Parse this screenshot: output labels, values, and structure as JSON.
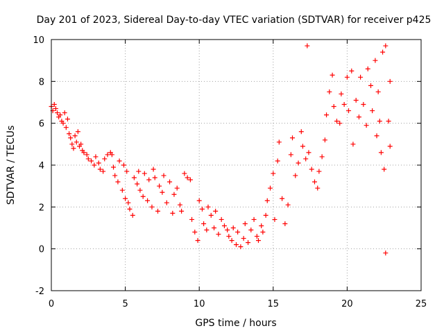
{
  "chart_data": {
    "type": "scatter",
    "title": "Day 201 of 2023, Sidereal Day-to-day VTEC variation (SDTVAR) for receiver p425",
    "xlabel": "GPS time / hours",
    "ylabel": "SDTVAR / TECUs",
    "xlim": [
      0,
      25
    ],
    "ylim": [
      -2,
      10
    ],
    "x_ticks": [
      0,
      5,
      10,
      15,
      20,
      25
    ],
    "x_tick_labels": [
      "0",
      "5",
      "10",
      "15",
      "20",
      "25"
    ],
    "y_ticks": [
      -2,
      0,
      2,
      4,
      6,
      8,
      10
    ],
    "y_tick_labels": [
      "-2",
      "0",
      "2",
      "4",
      "6",
      "8",
      "10"
    ],
    "grid": true,
    "marker": "+",
    "series": [
      {
        "name": "p425",
        "color": "#ff0000",
        "points": [
          {
            "x": 0.0,
            "y": 6.8
          },
          {
            "x": 0.1,
            "y": 6.6
          },
          {
            "x": 0.2,
            "y": 6.9
          },
          {
            "x": 0.3,
            "y": 6.7
          },
          {
            "x": 0.4,
            "y": 6.5
          },
          {
            "x": 0.5,
            "y": 6.3
          },
          {
            "x": 0.6,
            "y": 6.4
          },
          {
            "x": 0.7,
            "y": 6.1
          },
          {
            "x": 0.8,
            "y": 6.0
          },
          {
            "x": 0.9,
            "y": 6.5
          },
          {
            "x": 1.0,
            "y": 5.8
          },
          {
            "x": 1.1,
            "y": 6.2
          },
          {
            "x": 1.2,
            "y": 5.5
          },
          {
            "x": 1.3,
            "y": 5.3
          },
          {
            "x": 1.4,
            "y": 5.0
          },
          {
            "x": 1.5,
            "y": 4.8
          },
          {
            "x": 1.6,
            "y": 5.4
          },
          {
            "x": 1.7,
            "y": 5.1
          },
          {
            "x": 1.8,
            "y": 5.6
          },
          {
            "x": 1.9,
            "y": 4.9
          },
          {
            "x": 2.0,
            "y": 5.0
          },
          {
            "x": 2.1,
            "y": 4.7
          },
          {
            "x": 2.2,
            "y": 4.6
          },
          {
            "x": 2.4,
            "y": 4.5
          },
          {
            "x": 2.5,
            "y": 4.3
          },
          {
            "x": 2.7,
            "y": 4.2
          },
          {
            "x": 2.9,
            "y": 4.0
          },
          {
            "x": 3.0,
            "y": 4.4
          },
          {
            "x": 3.2,
            "y": 4.1
          },
          {
            "x": 3.3,
            "y": 3.8
          },
          {
            "x": 3.5,
            "y": 3.7
          },
          {
            "x": 3.6,
            "y": 4.3
          },
          {
            "x": 3.8,
            "y": 4.5
          },
          {
            "x": 4.0,
            "y": 4.6
          },
          {
            "x": 4.1,
            "y": 4.5
          },
          {
            "x": 4.2,
            "y": 3.9
          },
          {
            "x": 4.3,
            "y": 3.5
          },
          {
            "x": 4.5,
            "y": 3.2
          },
          {
            "x": 4.6,
            "y": 4.2
          },
          {
            "x": 4.8,
            "y": 2.8
          },
          {
            "x": 4.9,
            "y": 4.0
          },
          {
            "x": 5.0,
            "y": 2.4
          },
          {
            "x": 5.1,
            "y": 3.7
          },
          {
            "x": 5.2,
            "y": 2.2
          },
          {
            "x": 5.3,
            "y": 1.9
          },
          {
            "x": 5.5,
            "y": 1.6
          },
          {
            "x": 5.6,
            "y": 3.4
          },
          {
            "x": 5.8,
            "y": 3.1
          },
          {
            "x": 5.9,
            "y": 3.7
          },
          {
            "x": 6.0,
            "y": 2.8
          },
          {
            "x": 6.2,
            "y": 2.5
          },
          {
            "x": 6.3,
            "y": 3.6
          },
          {
            "x": 6.5,
            "y": 2.3
          },
          {
            "x": 6.6,
            "y": 3.3
          },
          {
            "x": 6.8,
            "y": 2.0
          },
          {
            "x": 6.9,
            "y": 3.8
          },
          {
            "x": 7.0,
            "y": 3.4
          },
          {
            "x": 7.2,
            "y": 1.8
          },
          {
            "x": 7.3,
            "y": 3.0
          },
          {
            "x": 7.5,
            "y": 2.7
          },
          {
            "x": 7.6,
            "y": 3.5
          },
          {
            "x": 7.8,
            "y": 2.2
          },
          {
            "x": 8.0,
            "y": 3.2
          },
          {
            "x": 8.2,
            "y": 1.7
          },
          {
            "x": 8.3,
            "y": 2.6
          },
          {
            "x": 8.5,
            "y": 2.9
          },
          {
            "x": 8.7,
            "y": 2.1
          },
          {
            "x": 8.8,
            "y": 1.8
          },
          {
            "x": 9.0,
            "y": 3.6
          },
          {
            "x": 9.2,
            "y": 3.4
          },
          {
            "x": 9.4,
            "y": 3.3
          },
          {
            "x": 9.5,
            "y": 1.4
          },
          {
            "x": 9.7,
            "y": 0.8
          },
          {
            "x": 9.9,
            "y": 0.4
          },
          {
            "x": 10.0,
            "y": 2.3
          },
          {
            "x": 10.2,
            "y": 1.9
          },
          {
            "x": 10.3,
            "y": 1.2
          },
          {
            "x": 10.5,
            "y": 0.9
          },
          {
            "x": 10.6,
            "y": 2.0
          },
          {
            "x": 10.8,
            "y": 1.6
          },
          {
            "x": 11.0,
            "y": 1.0
          },
          {
            "x": 11.1,
            "y": 1.8
          },
          {
            "x": 11.3,
            "y": 0.7
          },
          {
            "x": 11.5,
            "y": 1.4
          },
          {
            "x": 11.7,
            "y": 1.1
          },
          {
            "x": 11.9,
            "y": 0.9
          },
          {
            "x": 12.0,
            "y": 0.6
          },
          {
            "x": 12.2,
            "y": 0.4
          },
          {
            "x": 12.3,
            "y": 1.0
          },
          {
            "x": 12.5,
            "y": 0.2
          },
          {
            "x": 12.6,
            "y": 0.8
          },
          {
            "x": 12.8,
            "y": 0.1
          },
          {
            "x": 13.0,
            "y": 0.5
          },
          {
            "x": 13.1,
            "y": 1.2
          },
          {
            "x": 13.3,
            "y": 0.3
          },
          {
            "x": 13.5,
            "y": 0.9
          },
          {
            "x": 13.7,
            "y": 1.4
          },
          {
            "x": 13.9,
            "y": 0.6
          },
          {
            "x": 14.0,
            "y": 0.4
          },
          {
            "x": 14.2,
            "y": 1.1
          },
          {
            "x": 14.3,
            "y": 0.8
          },
          {
            "x": 14.5,
            "y": 1.6
          },
          {
            "x": 14.6,
            "y": 2.3
          },
          {
            "x": 14.8,
            "y": 2.9
          },
          {
            "x": 15.0,
            "y": 3.6
          },
          {
            "x": 15.1,
            "y": 1.4
          },
          {
            "x": 15.3,
            "y": 4.2
          },
          {
            "x": 15.4,
            "y": 5.1
          },
          {
            "x": 15.6,
            "y": 2.4
          },
          {
            "x": 15.8,
            "y": 1.2
          },
          {
            "x": 16.0,
            "y": 2.1
          },
          {
            "x": 16.2,
            "y": 4.5
          },
          {
            "x": 16.3,
            "y": 5.3
          },
          {
            "x": 16.5,
            "y": 3.5
          },
          {
            "x": 16.7,
            "y": 4.1
          },
          {
            "x": 16.9,
            "y": 5.6
          },
          {
            "x": 17.0,
            "y": 4.9
          },
          {
            "x": 17.2,
            "y": 4.3
          },
          {
            "x": 17.3,
            "y": 9.7
          },
          {
            "x": 17.4,
            "y": 4.6
          },
          {
            "x": 17.6,
            "y": 3.8
          },
          {
            "x": 17.8,
            "y": 3.2
          },
          {
            "x": 18.0,
            "y": 2.9
          },
          {
            "x": 18.1,
            "y": 3.7
          },
          {
            "x": 18.3,
            "y": 4.4
          },
          {
            "x": 18.5,
            "y": 5.2
          },
          {
            "x": 18.6,
            "y": 6.4
          },
          {
            "x": 18.8,
            "y": 7.5
          },
          {
            "x": 19.0,
            "y": 8.3
          },
          {
            "x": 19.1,
            "y": 6.8
          },
          {
            "x": 19.3,
            "y": 6.1
          },
          {
            "x": 19.5,
            "y": 6.0
          },
          {
            "x": 19.6,
            "y": 7.4
          },
          {
            "x": 19.8,
            "y": 6.9
          },
          {
            "x": 20.0,
            "y": 8.2
          },
          {
            "x": 20.1,
            "y": 6.6
          },
          {
            "x": 20.3,
            "y": 8.5
          },
          {
            "x": 20.4,
            "y": 5.0
          },
          {
            "x": 20.6,
            "y": 7.1
          },
          {
            "x": 20.8,
            "y": 6.3
          },
          {
            "x": 20.9,
            "y": 8.2
          },
          {
            "x": 21.1,
            "y": 6.9
          },
          {
            "x": 21.3,
            "y": 5.9
          },
          {
            "x": 21.4,
            "y": 8.6
          },
          {
            "x": 21.6,
            "y": 7.8
          },
          {
            "x": 21.7,
            "y": 6.6
          },
          {
            "x": 21.9,
            "y": 9.0
          },
          {
            "x": 22.0,
            "y": 5.4
          },
          {
            "x": 22.1,
            "y": 7.5
          },
          {
            "x": 22.2,
            "y": 6.1
          },
          {
            "x": 22.3,
            "y": 4.6
          },
          {
            "x": 22.4,
            "y": 9.4
          },
          {
            "x": 22.5,
            "y": 3.8
          },
          {
            "x": 22.6,
            "y": 9.7
          },
          {
            "x": 22.6,
            "y": -0.2
          },
          {
            "x": 22.8,
            "y": 6.1
          },
          {
            "x": 22.9,
            "y": 8.0
          },
          {
            "x": 22.9,
            "y": 4.9
          }
        ]
      }
    ]
  }
}
